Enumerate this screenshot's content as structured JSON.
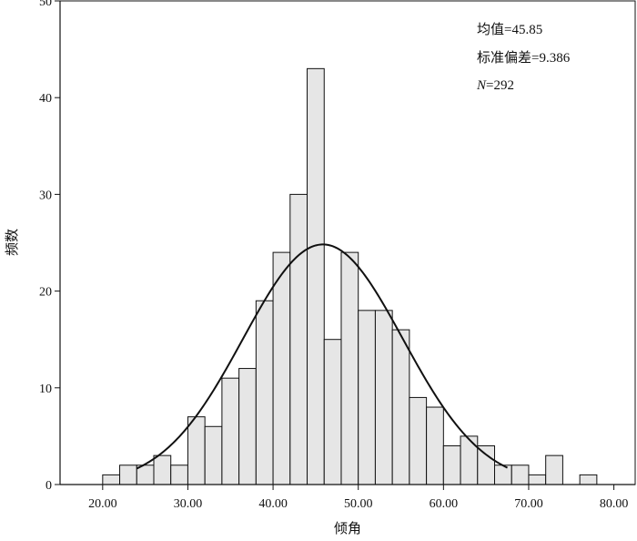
{
  "chart_data": {
    "type": "bar",
    "subtype": "histogram",
    "xlabel": "倾角",
    "ylabel": "频数",
    "xlim": [
      15.0,
      82.5
    ],
    "ylim": [
      0,
      50
    ],
    "x_ticks": [
      "20.00",
      "30.00",
      "40.00",
      "50.00",
      "60.00",
      "70.00",
      "80.00"
    ],
    "y_ticks": [
      "0",
      "10",
      "20",
      "30",
      "40",
      "50"
    ],
    "bin_width": 2,
    "bin_starts": [
      20,
      22,
      24,
      26,
      28,
      30,
      32,
      34,
      36,
      38,
      40,
      42,
      44,
      46,
      48,
      50,
      52,
      54,
      56,
      58,
      60,
      62,
      64,
      66,
      68,
      70,
      72,
      74,
      76
    ],
    "values": [
      1,
      2,
      2,
      3,
      2,
      7,
      6,
      11,
      12,
      19,
      24,
      30,
      43,
      15,
      24,
      18,
      18,
      16,
      9,
      8,
      4,
      5,
      4,
      2,
      2,
      1,
      3,
      0,
      1
    ],
    "normal_curve": {
      "mean": 45.85,
      "sd": 9.386,
      "n": 292
    },
    "annotations": {
      "mean": "均值=45.85",
      "sd": "标准偏差=9.386",
      "n_label": "N",
      "n_value": "=292"
    }
  }
}
